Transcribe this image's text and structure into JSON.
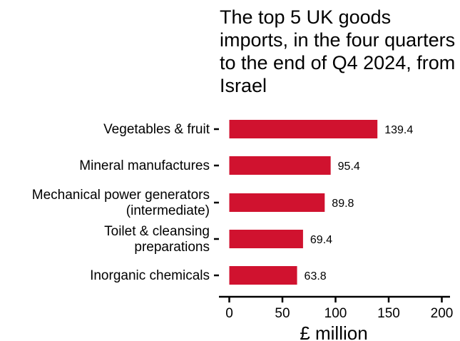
{
  "chart_data": {
    "type": "bar",
    "orientation": "horizontal",
    "title": "The top 5 UK goods imports, in the four quarters to the end of Q4 2024, from Israel",
    "xlabel": "£ million",
    "ylabel": "",
    "categories": [
      "Vegetables & fruit",
      "Mineral manufactures",
      "Mechanical power generators (intermediate)",
      "Toilet & cleansing preparations",
      "Inorganic chemicals"
    ],
    "category_lines": [
      [
        "Vegetables & fruit"
      ],
      [
        "Mineral manufactures"
      ],
      [
        "Mechanical power generators",
        "(intermediate)"
      ],
      [
        "Toilet & cleansing",
        "preparations"
      ],
      [
        "Inorganic chemicals"
      ]
    ],
    "values": [
      139.4,
      95.4,
      89.8,
      69.4,
      63.8
    ],
    "value_labels": [
      "139.4",
      "95.4",
      "89.8",
      "69.4",
      "63.8"
    ],
    "xlim": [
      0,
      200
    ],
    "xticks": [
      0,
      50,
      100,
      150,
      200
    ],
    "bar_color": "#d0122f",
    "grid": false,
    "legend": "none"
  }
}
